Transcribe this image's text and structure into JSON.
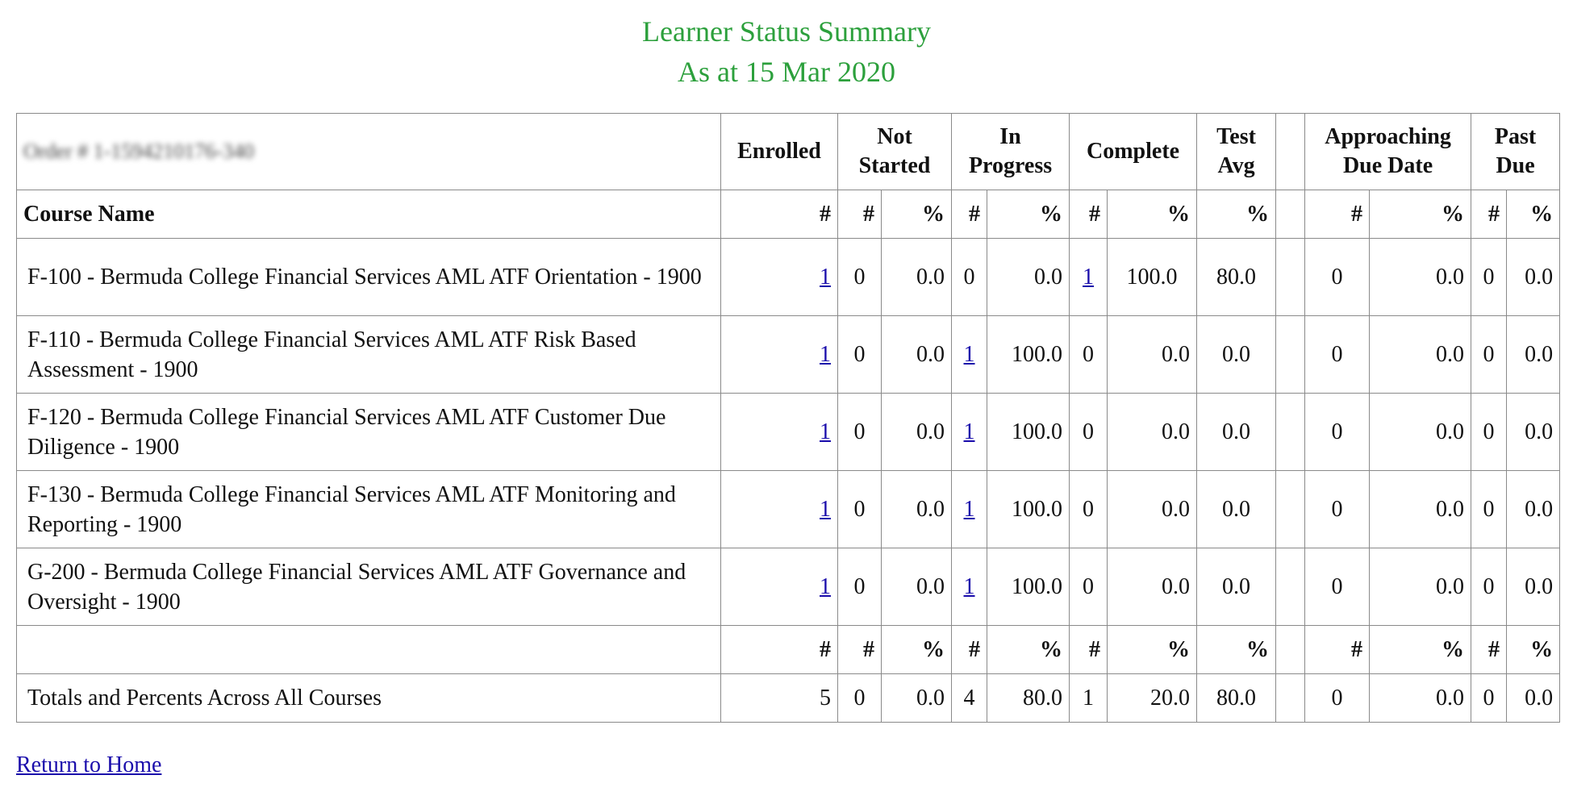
{
  "page": {
    "title": "Learner Status Summary",
    "subtitle": "As at 15 Mar 2020"
  },
  "table": {
    "order_label": "Order # 1-1594210176-340",
    "header": {
      "enrolled": "Enrolled",
      "not_started": "Not Started",
      "in_progress": "In Progress",
      "complete": "Complete",
      "test_avg": "Test Avg",
      "approaching_due_date": "Approaching Due Date",
      "past_due": "Past Due"
    },
    "subheader": {
      "course_name": "Course Name",
      "count": "#",
      "percent": "%"
    },
    "rows": [
      {
        "course": "F-100 - Bermuda College Financial Services AML ATF Orientation - 1900",
        "enrolled": "1",
        "not_started_n": "0",
        "not_started_pct": "0.0",
        "in_progress_n": "0",
        "in_progress_pct": "0.0",
        "complete_n": "1",
        "complete_pct": "100.0",
        "test_avg": "80.0",
        "approaching_n": "0",
        "approaching_pct": "0.0",
        "past_due_n": "0",
        "past_due_pct": "0.0"
      },
      {
        "course": "F-110 - Bermuda College Financial Services AML ATF Risk Based Assessment - 1900",
        "enrolled": "1",
        "not_started_n": "0",
        "not_started_pct": "0.0",
        "in_progress_n": "1",
        "in_progress_pct": "100.0",
        "complete_n": "0",
        "complete_pct": "0.0",
        "test_avg": "0.0",
        "approaching_n": "0",
        "approaching_pct": "0.0",
        "past_due_n": "0",
        "past_due_pct": "0.0"
      },
      {
        "course": "F-120 - Bermuda College Financial Services AML ATF Customer Due Diligence - 1900",
        "enrolled": "1",
        "not_started_n": "0",
        "not_started_pct": "0.0",
        "in_progress_n": "1",
        "in_progress_pct": "100.0",
        "complete_n": "0",
        "complete_pct": "0.0",
        "test_avg": "0.0",
        "approaching_n": "0",
        "approaching_pct": "0.0",
        "past_due_n": "0",
        "past_due_pct": "0.0"
      },
      {
        "course": "F-130 - Bermuda College Financial Services AML ATF Monitoring and Reporting - 1900",
        "enrolled": "1",
        "not_started_n": "0",
        "not_started_pct": "0.0",
        "in_progress_n": "1",
        "in_progress_pct": "100.0",
        "complete_n": "0",
        "complete_pct": "0.0",
        "test_avg": "0.0",
        "approaching_n": "0",
        "approaching_pct": "0.0",
        "past_due_n": "0",
        "past_due_pct": "0.0"
      },
      {
        "course": "G-200 - Bermuda College Financial Services AML ATF Governance and Oversight - 1900",
        "enrolled": "1",
        "not_started_n": "0",
        "not_started_pct": "0.0",
        "in_progress_n": "1",
        "in_progress_pct": "100.0",
        "complete_n": "0",
        "complete_pct": "0.0",
        "test_avg": "0.0",
        "approaching_n": "0",
        "approaching_pct": "0.0",
        "past_due_n": "0",
        "past_due_pct": "0.0"
      }
    ],
    "totals": {
      "label": "Totals and Percents Across All Courses",
      "enrolled": "5",
      "not_started_n": "0",
      "not_started_pct": "0.0",
      "in_progress_n": "4",
      "in_progress_pct": "80.0",
      "complete_n": "1",
      "complete_pct": "20.0",
      "test_avg": "80.0",
      "approaching_n": "0",
      "approaching_pct": "0.0",
      "past_due_n": "0",
      "past_due_pct": "0.0"
    }
  },
  "footer": {
    "return_home": "Return to Home"
  },
  "colors": {
    "title": "#2ca03c",
    "link": "#1a0dab",
    "border": "#8a8a8a"
  }
}
